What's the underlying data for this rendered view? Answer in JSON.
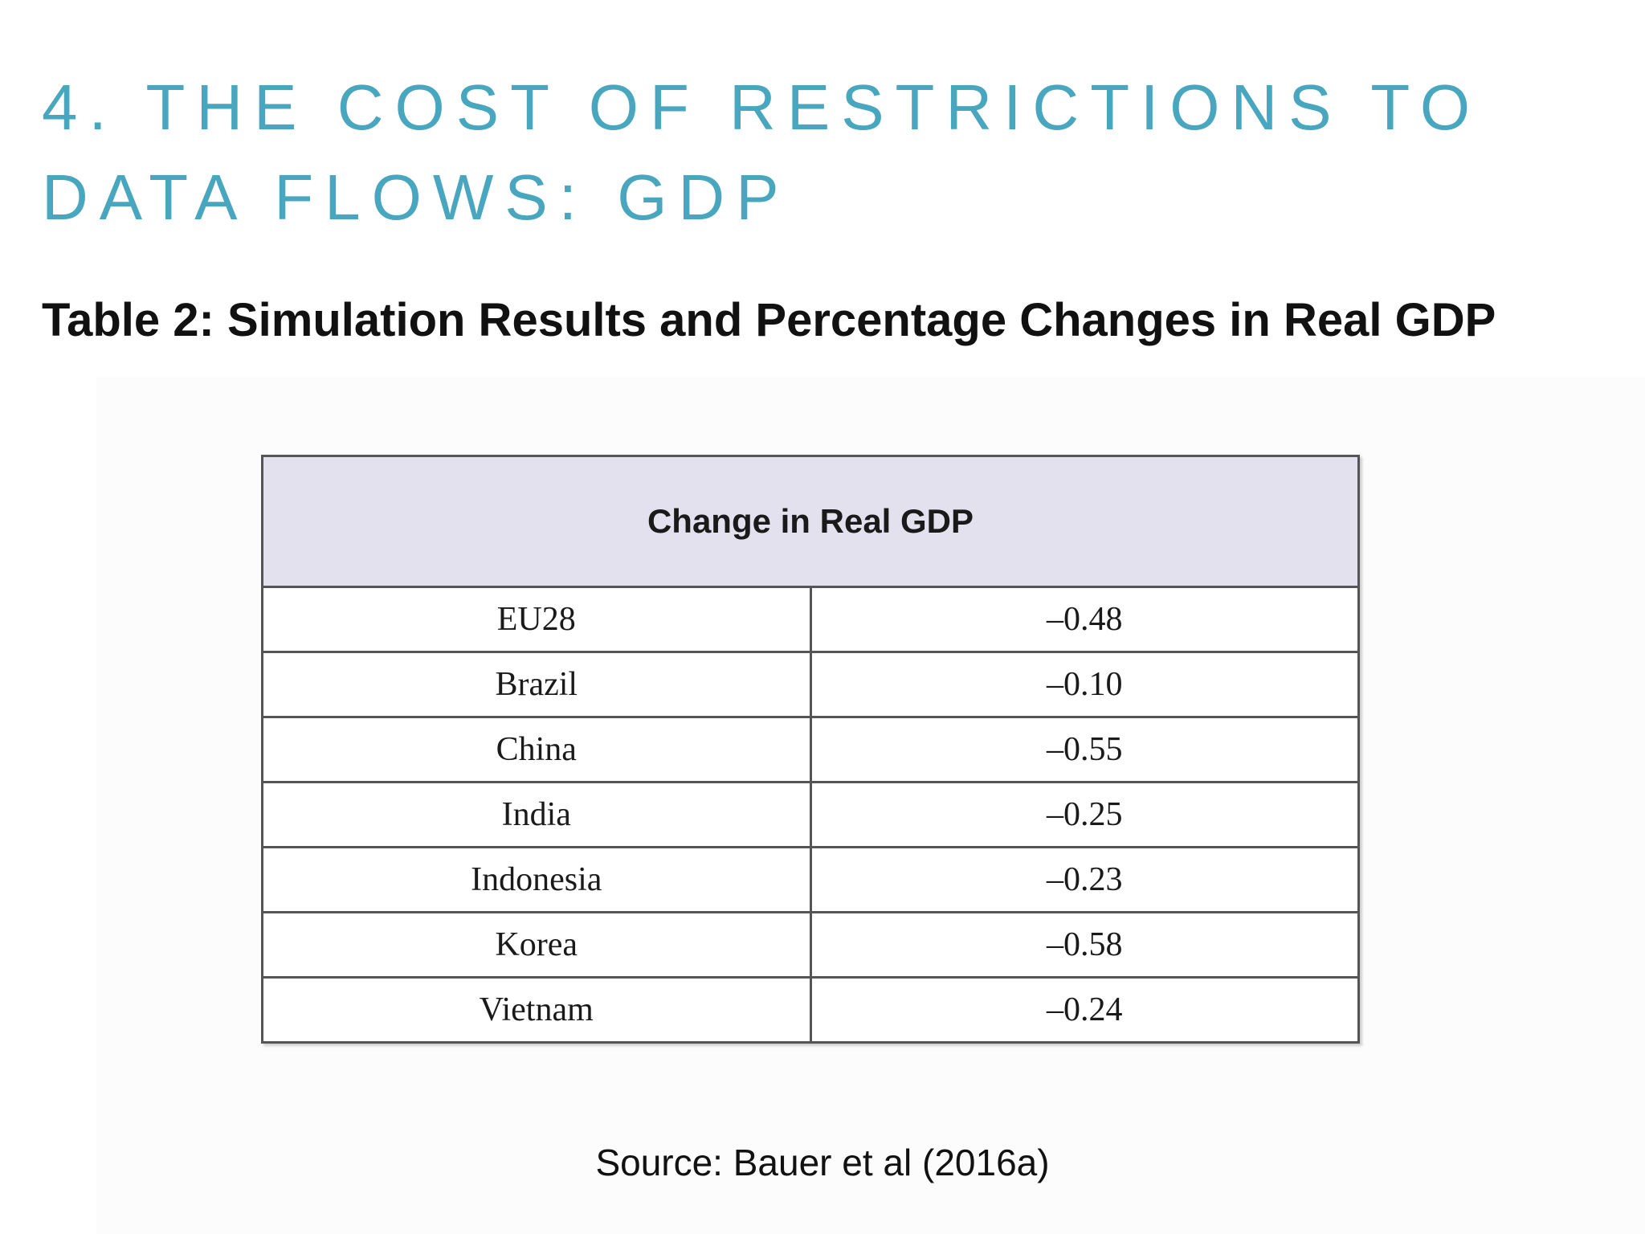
{
  "title": {
    "line1": "4. THE COST OF RESTRICTIONS TO",
    "line2": "DATA FLOWS: GDP"
  },
  "caption": "Table 2: Simulation Results and Percentage Changes in Real GDP",
  "table": {
    "header": "Change in Real GDP",
    "rows": [
      {
        "country": "EU28",
        "value": "–0.48"
      },
      {
        "country": "Brazil",
        "value": "–0.10"
      },
      {
        "country": "China",
        "value": "–0.55"
      },
      {
        "country": "India",
        "value": "–0.25"
      },
      {
        "country": "Indonesia",
        "value": "–0.23"
      },
      {
        "country": "Korea",
        "value": "–0.58"
      },
      {
        "country": "Vietnam",
        "value": "–0.24"
      }
    ]
  },
  "source": "Source: Bauer et al (2016a)",
  "colors": {
    "title": "#48a6bf",
    "header_bg": "#e3e1ee"
  }
}
